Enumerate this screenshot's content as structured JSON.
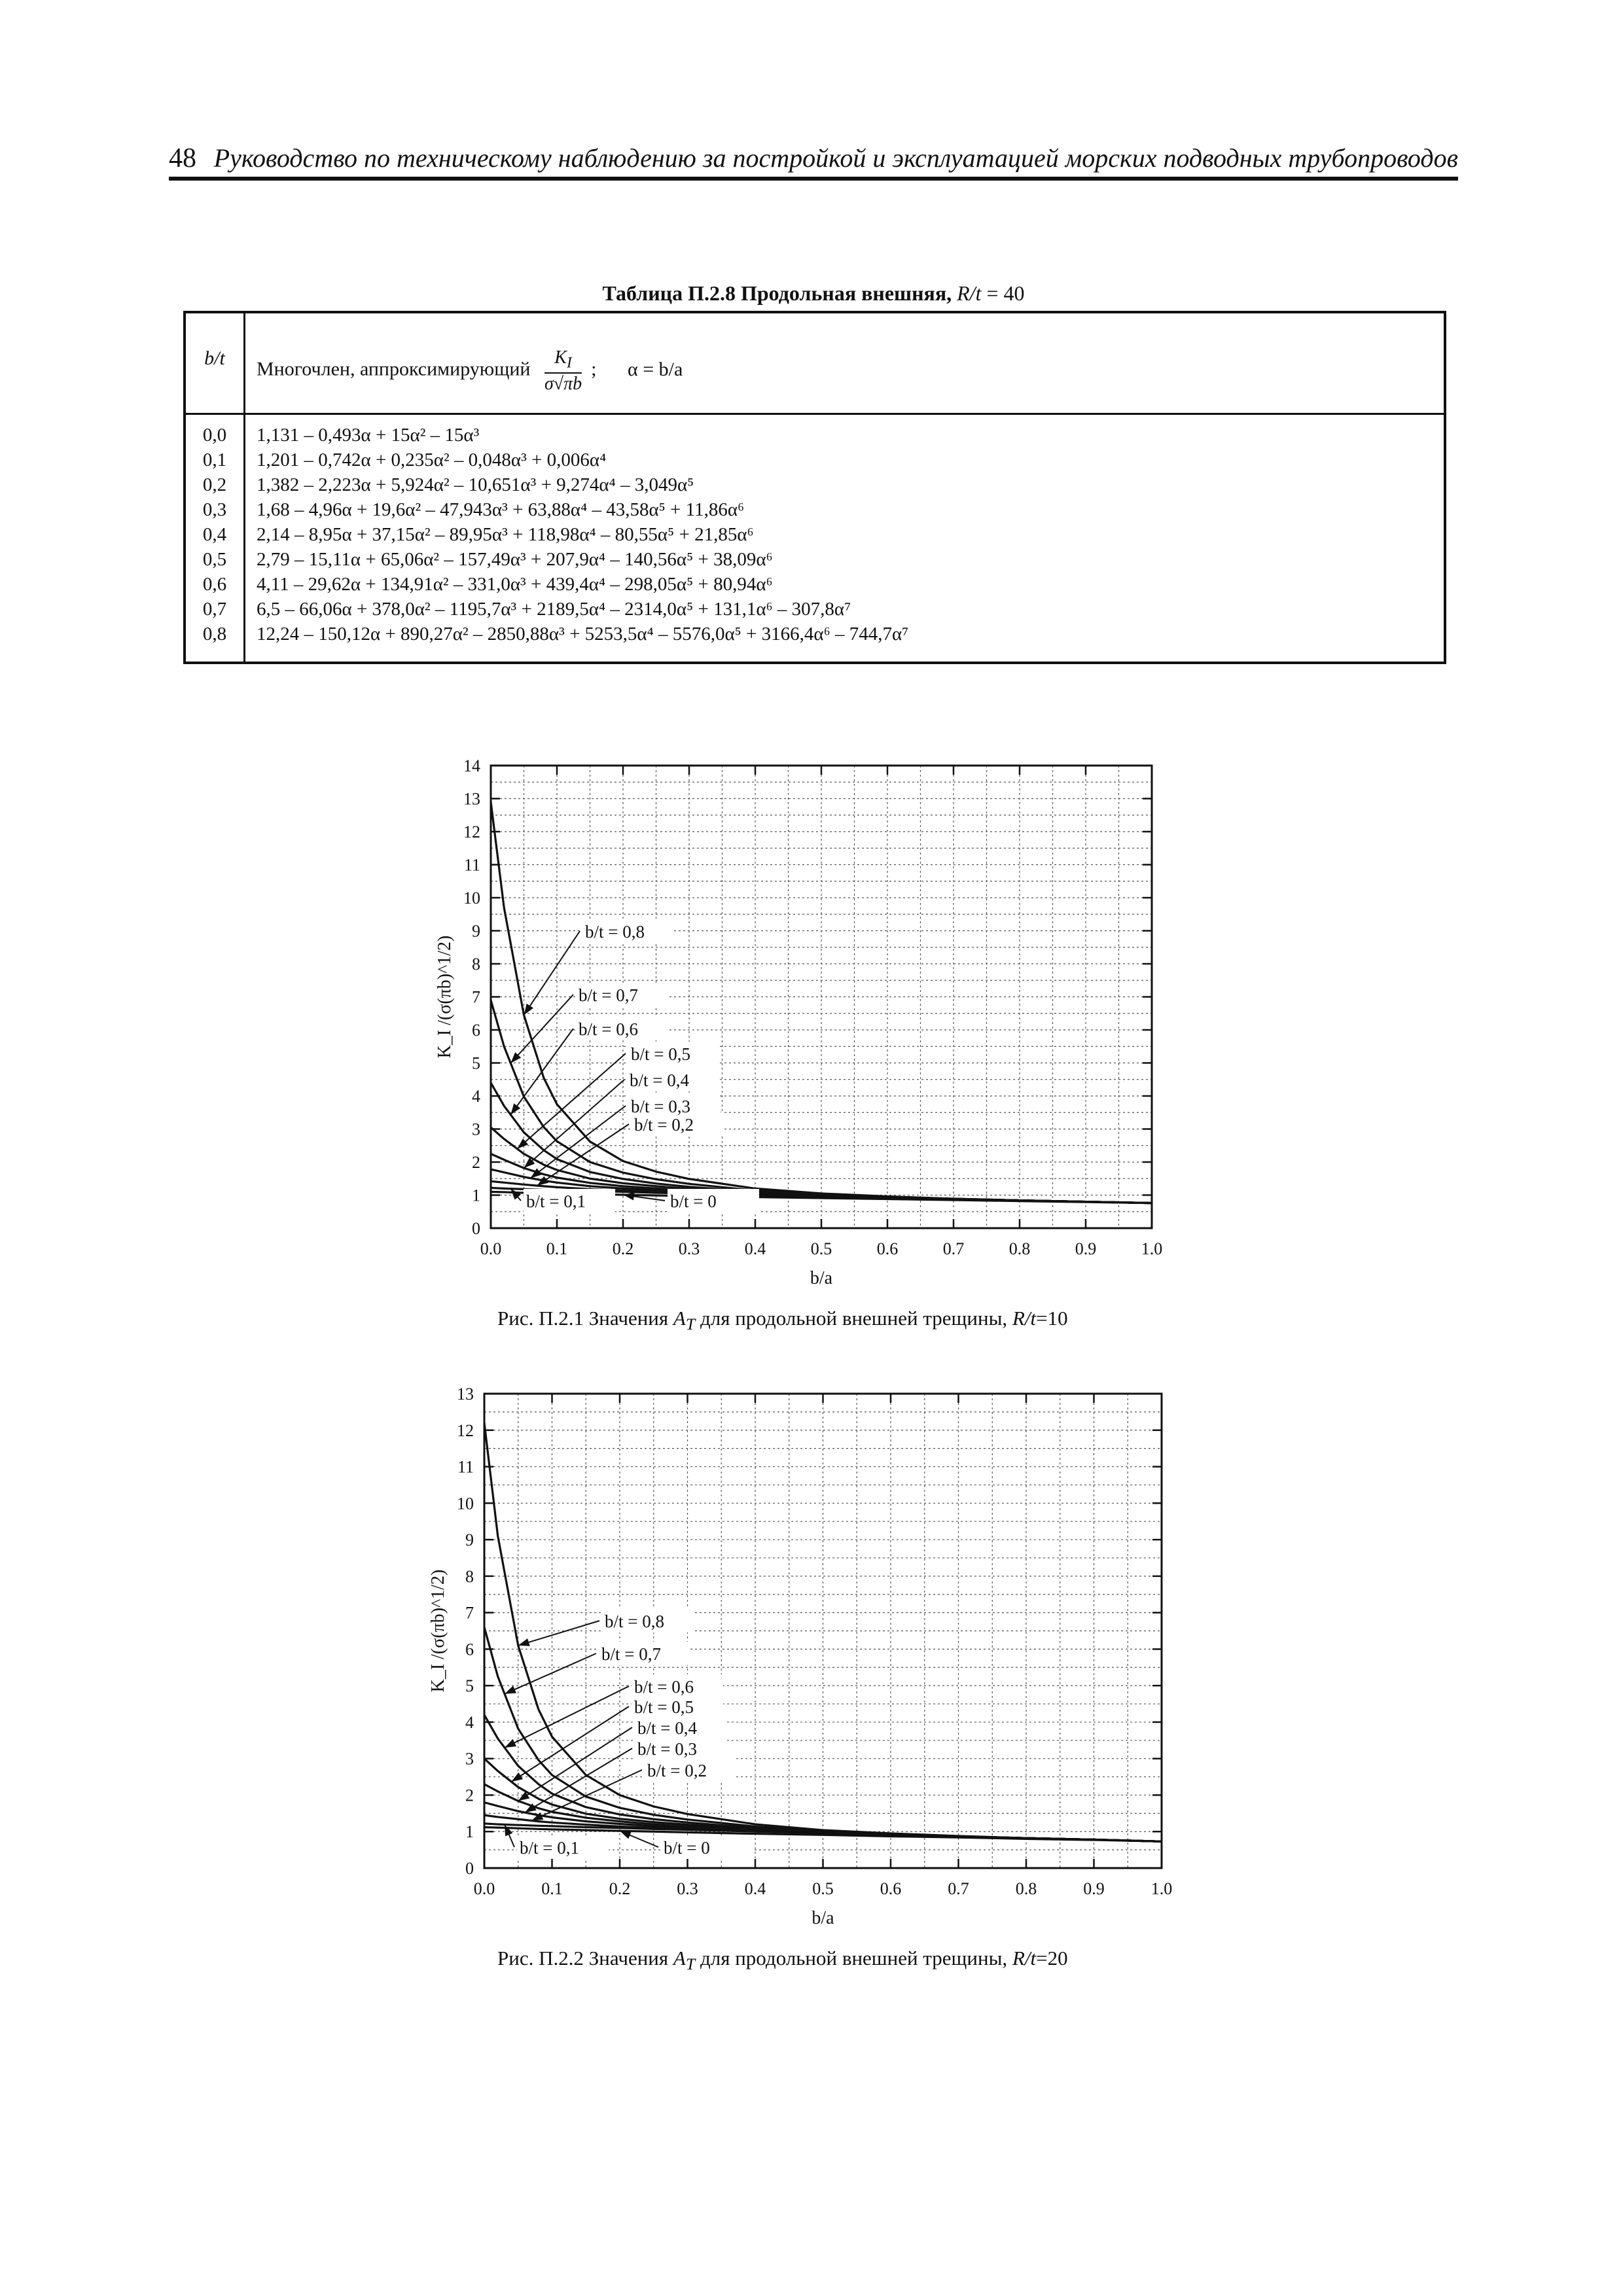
{
  "header": {
    "page_number": "48",
    "running_title": "Руководство по техническому наблюдению за постройкой и эксплуатацией морских подводных трубопроводов"
  },
  "table": {
    "caption_bold": "Таблица П.2.8 Продольная внешняя,",
    "caption_var": "R/t",
    "caption_value": " = 40",
    "header_bt": "b/t",
    "header_poly": "Многочлен, аппроксимирующий",
    "header_frac_num": "K",
    "header_frac_num_sub": "I",
    "header_frac_den": "σ√πb",
    "header_sep": ";",
    "header_alpha": "α = b/a",
    "rows": [
      {
        "bt": "0,0",
        "poly": "1,131 – 0,493α + 15α² – 15α³"
      },
      {
        "bt": "0,1",
        "poly": "1,201 – 0,742α + 0,235α² – 0,048α³ + 0,006α⁴"
      },
      {
        "bt": "0,2",
        "poly": "1,382 – 2,223α + 5,924α² – 10,651α³ + 9,274α⁴ – 3,049α⁵"
      },
      {
        "bt": "0,3",
        "poly": "1,68 – 4,96α + 19,6α² – 47,943α³ + 63,88α⁴ – 43,58α⁵ + 11,86α⁶"
      },
      {
        "bt": "0,4",
        "poly": "2,14 – 8,95α + 37,15α² – 89,95α³ + 118,98α⁴ – 80,55α⁵ + 21,85α⁶"
      },
      {
        "bt": "0,5",
        "poly": "2,79 – 15,11α + 65,06α² – 157,49α³ + 207,9α⁴ – 140,56α⁵ + 38,09α⁶"
      },
      {
        "bt": "0,6",
        "poly": "4,11 – 29,62α + 134,91α² – 331,0α³ + 439,4α⁴ – 298,05α⁵ + 80,94α⁶"
      },
      {
        "bt": "0,7",
        "poly": "6,5 – 66,06α + 378,0α² – 1195,7α³ + 2189,5α⁴ – 2314,0α⁵ + 131,1α⁶ – 307,8α⁷"
      },
      {
        "bt": "0,8",
        "poly": "12,24 – 150,12α + 890,27α² – 2850,88α³ + 5253,5α⁴ – 5576,0α⁵ + 3166,4α⁶ – 744,7α⁷"
      }
    ]
  },
  "figure1": {
    "caption_prefix": "Рис. П.2.1 Значения",
    "caption_sym": "A",
    "caption_sym_sub": "T",
    "caption_middle": "для продольной внешней трещины,",
    "caption_var": "R/t",
    "caption_suffix": "=10"
  },
  "figure2": {
    "caption_prefix": "Рис. П.2.2 Значения",
    "caption_sym": "A",
    "caption_sym_sub": "T",
    "caption_middle": "для продольной внешней трещины,",
    "caption_var": "R/t",
    "caption_suffix": "=20"
  },
  "chart_data": [
    {
      "type": "line",
      "xlabel": "b/a",
      "ylabel": "K_I /(σ(πb)^1/2)",
      "xlim": [
        0,
        1.0
      ],
      "ylim": [
        0,
        14
      ],
      "xticks": [
        "0.0",
        "0.1",
        "0.2",
        "0.3",
        "0.4",
        "0.5",
        "0.6",
        "0.7",
        "0.8",
        "0.9",
        "1.0"
      ],
      "yticks": [
        "0",
        "1",
        "2",
        "3",
        "4",
        "5",
        "6",
        "7",
        "8",
        "9",
        "10",
        "11",
        "12",
        "13",
        "14"
      ],
      "grid": true,
      "x": [
        0.0,
        0.02,
        0.05,
        0.08,
        0.1,
        0.15,
        0.2,
        0.25,
        0.3,
        0.4,
        0.5,
        0.6,
        0.7,
        0.8,
        0.9,
        1.0
      ],
      "series": [
        {
          "name": "b/t = 0",
          "values": [
            1.1,
            1.09,
            1.07,
            1.06,
            1.05,
            1.03,
            1.01,
            0.99,
            0.97,
            0.94,
            0.91,
            0.88,
            0.85,
            0.82,
            0.79,
            0.76
          ]
        },
        {
          "name": "b/t = 0,1",
          "values": [
            1.22,
            1.2,
            1.18,
            1.16,
            1.15,
            1.12,
            1.1,
            1.07,
            1.05,
            1.0,
            0.96,
            0.92,
            0.88,
            0.84,
            0.8,
            0.76
          ]
        },
        {
          "name": "b/t = 0,2",
          "values": [
            1.42,
            1.38,
            1.32,
            1.27,
            1.24,
            1.18,
            1.14,
            1.1,
            1.07,
            1.01,
            0.96,
            0.92,
            0.88,
            0.84,
            0.8,
            0.76
          ]
        },
        {
          "name": "b/t = 0,3",
          "values": [
            1.78,
            1.69,
            1.55,
            1.44,
            1.38,
            1.27,
            1.2,
            1.15,
            1.1,
            1.03,
            0.97,
            0.92,
            0.88,
            0.84,
            0.8,
            0.76
          ]
        },
        {
          "name": "b/t = 0,4",
          "values": [
            2.25,
            2.07,
            1.82,
            1.63,
            1.53,
            1.37,
            1.27,
            1.2,
            1.14,
            1.05,
            0.98,
            0.93,
            0.88,
            0.84,
            0.8,
            0.76
          ]
        },
        {
          "name": "b/t = 0,5",
          "values": [
            3.05,
            2.7,
            2.25,
            1.92,
            1.76,
            1.5,
            1.36,
            1.27,
            1.19,
            1.07,
            0.99,
            0.93,
            0.88,
            0.84,
            0.8,
            0.76
          ]
        },
        {
          "name": "b/t = 0,6",
          "values": [
            4.4,
            3.7,
            2.9,
            2.36,
            2.09,
            1.7,
            1.49,
            1.35,
            1.25,
            1.1,
            1.0,
            0.94,
            0.89,
            0.84,
            0.8,
            0.76
          ]
        },
        {
          "name": "b/t = 0,7",
          "values": [
            6.9,
            5.5,
            3.98,
            3.06,
            2.63,
            2.0,
            1.68,
            1.48,
            1.34,
            1.14,
            1.02,
            0.95,
            0.89,
            0.84,
            0.8,
            0.76
          ]
        },
        {
          "name": "b/t = 0,8",
          "values": [
            12.9,
            9.7,
            6.45,
            4.55,
            3.75,
            2.62,
            2.03,
            1.71,
            1.49,
            1.2,
            1.05,
            0.96,
            0.89,
            0.84,
            0.8,
            0.76
          ]
        }
      ]
    },
    {
      "type": "line",
      "xlabel": "b/a",
      "ylabel": "K_I /(σ(πb)^1/2)",
      "xlim": [
        0,
        1.0
      ],
      "ylim": [
        0,
        13
      ],
      "xticks": [
        "0.0",
        "0.1",
        "0.2",
        "0.3",
        "0.4",
        "0.5",
        "0.6",
        "0.7",
        "0.8",
        "0.9",
        "1.0"
      ],
      "yticks": [
        "0",
        "1",
        "2",
        "3",
        "4",
        "5",
        "6",
        "7",
        "8",
        "9",
        "10",
        "11",
        "12",
        "13"
      ],
      "grid": true,
      "x": [
        0.0,
        0.02,
        0.05,
        0.08,
        0.1,
        0.15,
        0.2,
        0.25,
        0.3,
        0.4,
        0.5,
        0.6,
        0.7,
        0.8,
        0.9,
        1.0
      ],
      "series": [
        {
          "name": "b/t = 0",
          "values": [
            1.12,
            1.11,
            1.09,
            1.07,
            1.06,
            1.04,
            1.02,
            1.0,
            0.98,
            0.94,
            0.91,
            0.87,
            0.84,
            0.8,
            0.77,
            0.73
          ]
        },
        {
          "name": "b/t = 0,1",
          "values": [
            1.22,
            1.2,
            1.18,
            1.16,
            1.15,
            1.12,
            1.1,
            1.07,
            1.05,
            1.0,
            0.96,
            0.91,
            0.86,
            0.82,
            0.78,
            0.73
          ]
        },
        {
          "name": "b/t = 0,2",
          "values": [
            1.45,
            1.4,
            1.34,
            1.28,
            1.25,
            1.19,
            1.14,
            1.1,
            1.07,
            1.01,
            0.96,
            0.91,
            0.86,
            0.82,
            0.78,
            0.73
          ]
        },
        {
          "name": "b/t = 0,3",
          "values": [
            1.8,
            1.7,
            1.56,
            1.45,
            1.39,
            1.28,
            1.21,
            1.15,
            1.1,
            1.03,
            0.97,
            0.91,
            0.86,
            0.82,
            0.78,
            0.73
          ]
        },
        {
          "name": "b/t = 0,4",
          "values": [
            2.3,
            2.1,
            1.84,
            1.64,
            1.54,
            1.38,
            1.28,
            1.2,
            1.14,
            1.05,
            0.98,
            0.92,
            0.87,
            0.82,
            0.78,
            0.73
          ]
        },
        {
          "name": "b/t = 0,5",
          "values": [
            3.0,
            2.66,
            2.22,
            1.9,
            1.74,
            1.49,
            1.35,
            1.26,
            1.19,
            1.07,
            0.99,
            0.92,
            0.87,
            0.82,
            0.78,
            0.73
          ]
        },
        {
          "name": "b/t = 0,6",
          "values": [
            4.2,
            3.55,
            2.8,
            2.3,
            2.04,
            1.67,
            1.47,
            1.34,
            1.25,
            1.1,
            1.0,
            0.93,
            0.87,
            0.82,
            0.78,
            0.73
          ]
        },
        {
          "name": "b/t = 0,7",
          "values": [
            6.6,
            5.25,
            3.82,
            2.96,
            2.55,
            1.96,
            1.65,
            1.46,
            1.33,
            1.14,
            1.02,
            0.94,
            0.87,
            0.82,
            0.78,
            0.73
          ]
        },
        {
          "name": "b/t = 0,8",
          "values": [
            12.2,
            9.1,
            6.1,
            4.35,
            3.6,
            2.55,
            2.0,
            1.69,
            1.48,
            1.2,
            1.04,
            0.95,
            0.88,
            0.82,
            0.78,
            0.73
          ]
        }
      ]
    }
  ]
}
